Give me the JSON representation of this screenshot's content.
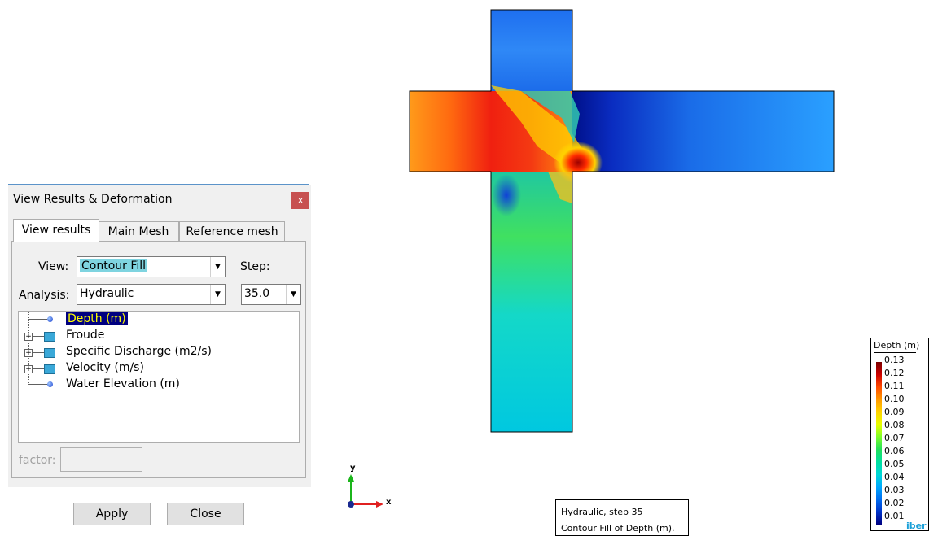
{
  "dialog": {
    "title": "View Results & Deformation",
    "close_label": "x",
    "tabs": [
      {
        "label": "View results",
        "active": true
      },
      {
        "label": "Main Mesh",
        "active": false
      },
      {
        "label": "Reference mesh",
        "active": false
      }
    ],
    "view_label": "View:",
    "view_value": "Contour Fill",
    "step_label": "Step:",
    "analysis_label": "Analysis:",
    "analysis_value": "Hydraulic",
    "step_value": "35.0",
    "tree": [
      {
        "label": "Depth (m)",
        "selected": true,
        "icon": "result-dot-icon",
        "expandable": false
      },
      {
        "label": "Froude",
        "selected": false,
        "icon": "folder-square-icon",
        "expandable": true
      },
      {
        "label": "Specific Discharge (m2/s)",
        "selected": false,
        "icon": "folder-square-icon",
        "expandable": true
      },
      {
        "label": "Velocity (m/s)",
        "selected": false,
        "icon": "folder-square-icon",
        "expandable": true
      },
      {
        "label": "Water Elevation (m)",
        "selected": false,
        "icon": "result-dot-icon",
        "expandable": false
      }
    ],
    "factor_label": "factor:",
    "factor_value": "",
    "apply_label": "Apply",
    "close_button_label": "Close"
  },
  "legend": {
    "title": "Depth (m)",
    "values": [
      "0.13",
      "0.12",
      "0.11",
      "0.10",
      "0.09",
      "0.08",
      "0.07",
      "0.06",
      "0.05",
      "0.04",
      "0.03",
      "0.02",
      "0.01"
    ],
    "brand": "iber"
  },
  "info": {
    "line1": "Hydraulic, step 35",
    "line2": "Contour Fill of Depth (m)."
  },
  "axes": {
    "x": "x",
    "y": "y"
  },
  "colors": {
    "accent": "#5b93c9",
    "close_red": "#c75050",
    "selection": "#000080",
    "highlight": "#7fd4e0"
  }
}
